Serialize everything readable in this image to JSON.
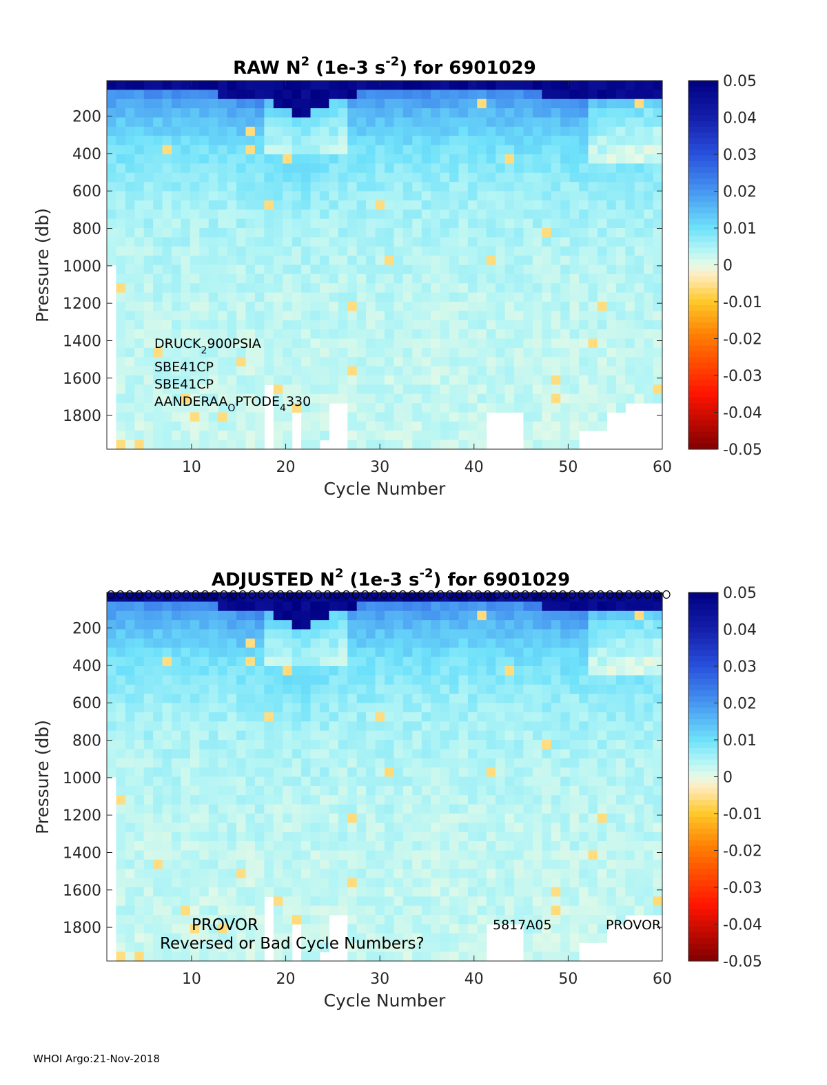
{
  "footer": "WHOI Argo:21-Nov-2018",
  "chart_data": [
    {
      "type": "heatmap",
      "title": {
        "prefix": "RAW N",
        "sup1": "2",
        "mid": " (1e-3 s",
        "sup2": "-2",
        "suffix": ") for 6901029"
      },
      "xlabel": "Cycle Number",
      "ylabel": "Pressure (db)",
      "xlim": [
        1,
        60
      ],
      "ylim": [
        1980,
        10
      ],
      "y_reversed": true,
      "xticks": [
        "10",
        "20",
        "30",
        "40",
        "50",
        "60"
      ],
      "yticks": [
        "200",
        "400",
        "600",
        "800",
        "1000",
        "1200",
        "1400",
        "1600",
        "1800"
      ],
      "colorbar": {
        "ticks": [
          "0.05",
          "0.04",
          "0.03",
          "0.02",
          "0.01",
          "0",
          "-0.01",
          "-0.02",
          "-0.03",
          "-0.04",
          "-0.05"
        ],
        "range": [
          -0.05,
          0.05
        ],
        "colormap": "jet-with-white-center"
      },
      "annotations": {
        "sensor1_base": "DRUCK",
        "sensor1_sub": "2",
        "sensor1_end": "900PSIA",
        "sensor2": "SBE41CP",
        "sensor3": "SBE41CP",
        "sensor4_base": "AANDERAA",
        "sensor4_sub": "O",
        "sensor4_mid": "PTODE",
        "sensor4_sub2": "4",
        "sensor4_end": "330"
      },
      "description_of_field": {
        "strong_stratification_surface_depth_by_cycle": [
          [
            1,
            60
          ],
          [
            10,
            70
          ],
          [
            15,
            100
          ],
          [
            18,
            130
          ],
          [
            22,
            200
          ],
          [
            25,
            100
          ],
          [
            30,
            70
          ],
          [
            40,
            60
          ],
          [
            50,
            90
          ],
          [
            53,
            130
          ],
          [
            60,
            100
          ]
        ],
        "peak_value": 0.05,
        "background_value": 0.003
      }
    },
    {
      "type": "heatmap",
      "title": {
        "prefix": "ADJUSTED N",
        "sup1": "2",
        "mid": " (1e-3 s",
        "sup2": "-2",
        "suffix": ") for 6901029"
      },
      "xlabel": "Cycle Number",
      "ylabel": "Pressure (db)",
      "xlim": [
        1,
        60
      ],
      "ylim": [
        1980,
        10
      ],
      "y_reversed": true,
      "xticks": [
        "10",
        "20",
        "30",
        "40",
        "50",
        "60"
      ],
      "yticks": [
        "200",
        "400",
        "600",
        "800",
        "1000",
        "1200",
        "1400",
        "1600",
        "1800"
      ],
      "colorbar": {
        "ticks": [
          "0.05",
          "0.04",
          "0.03",
          "0.02",
          "0.01",
          "0",
          "-0.01",
          "-0.02",
          "-0.03",
          "-0.04",
          "-0.05"
        ],
        "range": [
          -0.05,
          0.05
        ],
        "colormap": "jet-with-white-center"
      },
      "annotations": {
        "platform_left": "PROVOR",
        "warning": "Reversed or Bad Cycle Numbers?",
        "serial": "5817A05",
        "platform_right": "PROVOR",
        "cycle_marker": "o"
      }
    }
  ]
}
